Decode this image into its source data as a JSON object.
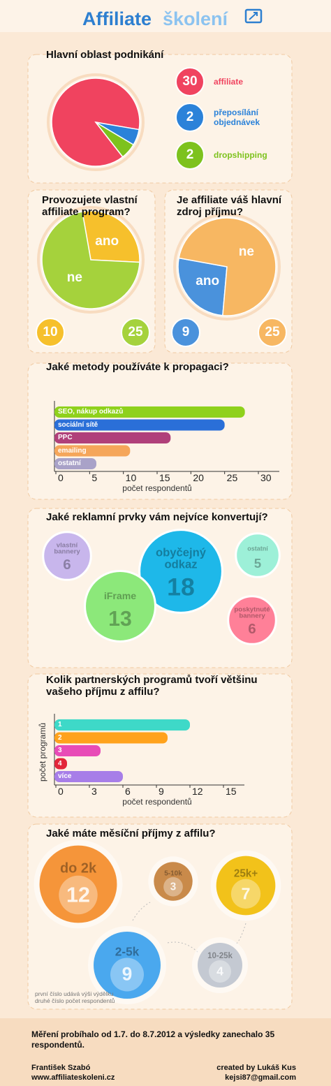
{
  "header": {
    "title_part1": "Affiliate",
    "title_part2": "školení"
  },
  "chart_data": [
    {
      "type": "pie",
      "title": "Hlavní oblast podnikání",
      "categories": [
        "affiliate",
        "přeposílání objednávek",
        "dropshipping"
      ],
      "values": [
        30,
        2,
        2
      ],
      "colors": [
        "#f0435f",
        "#2b82d9",
        "#7dc21d"
      ]
    },
    {
      "type": "pie",
      "title": "Provozujete vlastní affiliate program?",
      "categories": [
        "ano",
        "ne"
      ],
      "values": [
        10,
        25
      ],
      "colors": [
        "#f6c02c",
        "#a5d23c"
      ]
    },
    {
      "type": "pie",
      "title": "Je affiliate váš hlavní zdroj příjmu?",
      "categories": [
        "ano",
        "ne"
      ],
      "values": [
        9,
        25
      ],
      "colors": [
        "#4a92dc",
        "#f7b762"
      ]
    },
    {
      "type": "hbar",
      "title": "Jaké metody používáte k propagaci?",
      "categories": [
        "SEO, nákup odkazů",
        "sociální sítě",
        "PPC",
        "emailing",
        "ostatní"
      ],
      "values": [
        28,
        25,
        17,
        11,
        6
      ],
      "colors": [
        "#8fd11c",
        "#2a6fd8",
        "#b0407a",
        "#f5a65a",
        "#a9a2c8"
      ],
      "xlim": [
        0,
        30
      ],
      "xticks": [
        0,
        5,
        10,
        15,
        20,
        25,
        30
      ],
      "xlabel": "počet respondentů"
    },
    {
      "type": "bubble",
      "title": "Jaké reklamní prvky vám nejvíce konvertují?",
      "categories": [
        "vlastní bannery",
        "obyčejný odkaz",
        "ostatní",
        "iFrame",
        "poskytnuté bannery"
      ],
      "values": [
        6,
        18,
        5,
        13,
        6
      ],
      "colors": [
        "#c8b6ec",
        "#1eb8e9",
        "#9df0d8",
        "#8ce87a",
        "#ff8098"
      ]
    },
    {
      "type": "hbar",
      "title": "Kolik partnerských programů tvoří většinu vašeho příjmu z affilu?",
      "categories": [
        "1",
        "2",
        "3",
        "4",
        "více"
      ],
      "values": [
        12,
        10,
        4,
        1,
        6
      ],
      "colors": [
        "#3ed9c8",
        "#ffa21c",
        "#e84bb7",
        "#e2263a",
        "#a77ee8"
      ],
      "xlim": [
        0,
        15
      ],
      "xticks": [
        0,
        3,
        6,
        9,
        12,
        15
      ],
      "xlabel": "počet respondentů",
      "ylabel": "počet programů"
    },
    {
      "type": "coins",
      "title": "Jaké máte měsíční příjmy z affilu?",
      "categories": [
        "do 2k",
        "5-10k",
        "25k+",
        "2-5k",
        "10-25k"
      ],
      "values": [
        12,
        3,
        7,
        9,
        4
      ],
      "colors": [
        "#f5953a",
        "#c98a4a",
        "#f2c21a",
        "#4aa8ee",
        "#c4c9d2"
      ],
      "note": [
        "první číslo udává výši výdělku",
        "druhé číslo počet respondentů"
      ]
    }
  ],
  "footer": {
    "note": "Měření probíhalo od 1.7. do 8.7.2012 a výsledky zanechalo 35 respondentů.",
    "author": "František Szabó",
    "website": "www.affiliateskoleni.cz",
    "credit": "created by Lukáš Kus",
    "email": "kejsi87@gmail.com"
  }
}
